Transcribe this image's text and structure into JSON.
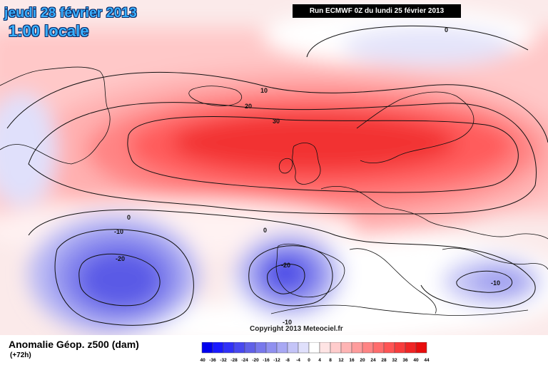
{
  "header": {
    "date": "jeudi 28 février 2013",
    "time": "1:00 locale",
    "run": "Run ECMWF 0Z du lundi 25 février 2013"
  },
  "copyright": "Copyright 2013 Meteociel.fr",
  "legend": {
    "title": "Anomalie Géop. z500 (dam)",
    "subtitle": "(+72h)",
    "ticks": [
      "-40",
      "-36",
      "-32",
      "-28",
      "-24",
      "-20",
      "-16",
      "-12",
      "-8",
      "-4",
      "0",
      "4",
      "8",
      "12",
      "16",
      "20",
      "24",
      "28",
      "32",
      "36",
      "40",
      "44"
    ],
    "colors": [
      "#0000ee",
      "#1a1aff",
      "#3030f8",
      "#4848f0",
      "#6060e8",
      "#7878ec",
      "#9090f0",
      "#a8a8f4",
      "#c4c4f8",
      "#e0e0fc",
      "#ffffff",
      "#ffe4e4",
      "#ffcccc",
      "#ffb4b4",
      "#ff9c9c",
      "#ff8484",
      "#ff6c6c",
      "#ff5454",
      "#f83c3c",
      "#f02424",
      "#e80c0c"
    ]
  },
  "contour_labels": {
    "l0_north": "0",
    "l10": "10",
    "l20": "20",
    "l30": "30",
    "l0_west": "0",
    "lm10_west": "-10",
    "lm20_west": "-20",
    "l0_mid": "0",
    "lm20_iberia": "-20",
    "lm10_iberia": "-10",
    "lm10_med": "-10"
  },
  "colors": {
    "title_fill": "#3ab0ff",
    "title_outline": "#0a2a66",
    "positive_core": "#f23030",
    "negative_core": "#4a4ae6"
  }
}
